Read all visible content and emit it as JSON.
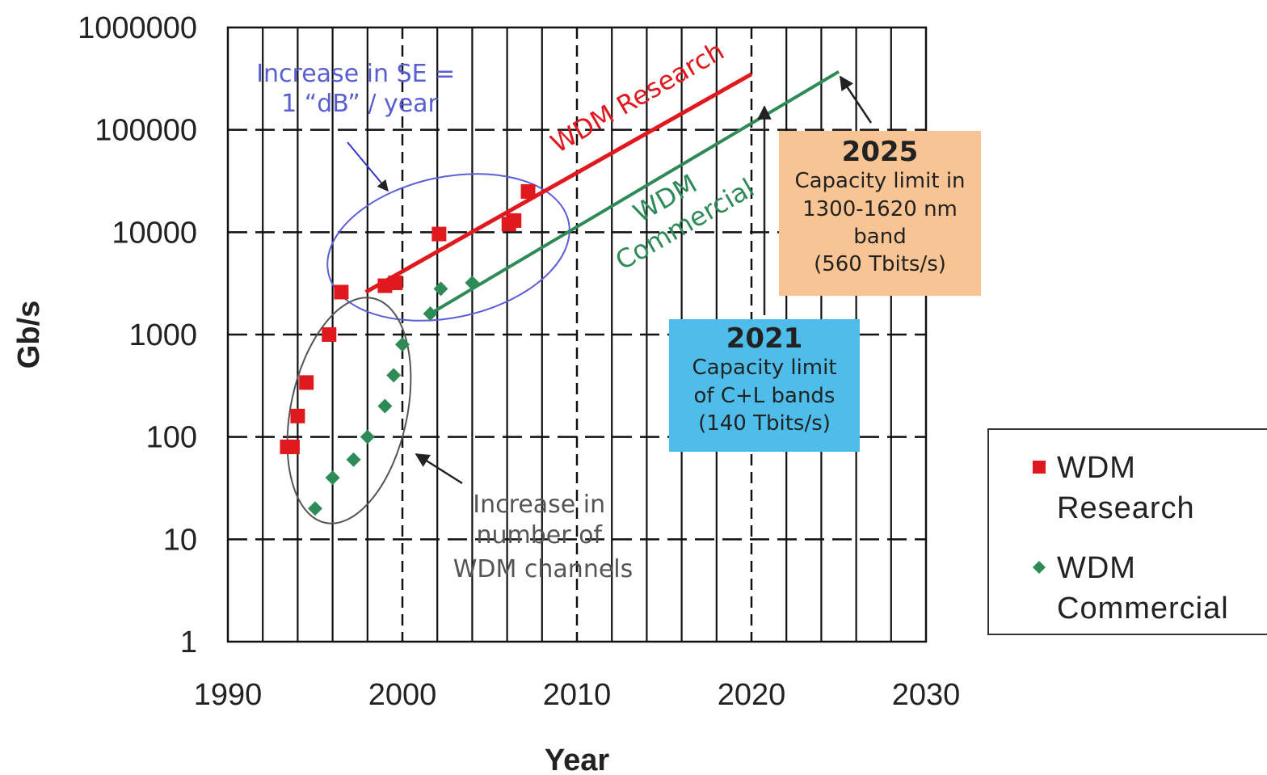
{
  "chart_data": {
    "type": "scatter",
    "xlabel": "Year",
    "ylabel": "Gb/s",
    "xlim": [
      1990,
      2030
    ],
    "ylim": [
      1,
      1000000
    ],
    "yscale": "log",
    "x_ticks": [
      "1990",
      "2000",
      "2010",
      "2020",
      "2030"
    ],
    "y_ticks": [
      "1",
      "10",
      "100",
      "1000",
      "10000",
      "100000",
      "1000000"
    ],
    "grid": "dashed major, solid vertical minor",
    "legend_position": "right",
    "series": [
      {
        "name": "WDM Research",
        "color": "#e0191f",
        "marker": "square",
        "points": [
          [
            1993.4,
            80
          ],
          [
            1993.7,
            80
          ],
          [
            1994.0,
            160
          ],
          [
            1994.5,
            340
          ],
          [
            1995.8,
            1000
          ],
          [
            1996.5,
            2600
          ],
          [
            1999.0,
            3000
          ],
          [
            1999.6,
            3200
          ],
          [
            2002.1,
            9600
          ],
          [
            2006.1,
            12000
          ],
          [
            2006.4,
            13000
          ],
          [
            2007.2,
            25000
          ]
        ],
        "trend": [
          [
            1997.9,
            2600
          ],
          [
            2020.0,
            350000
          ]
        ]
      },
      {
        "name": "WDM Commercial",
        "color": "#2e8b57",
        "marker": "diamond",
        "points": [
          [
            1995.0,
            20
          ],
          [
            1996.0,
            40
          ],
          [
            1997.2,
            60
          ],
          [
            1998.0,
            100
          ],
          [
            1999.0,
            200
          ],
          [
            1999.5,
            400
          ],
          [
            2000.0,
            800
          ],
          [
            2001.6,
            1600
          ],
          [
            2002.2,
            2800
          ],
          [
            2004.0,
            3200
          ]
        ],
        "trend": [
          [
            2001.6,
            1600
          ],
          [
            2025.0,
            370000
          ]
        ]
      }
    ],
    "annotations": {
      "se_note": [
        "Increase in SE =",
        "1 “dB” / year"
      ],
      "channels_note": [
        "Increase in",
        "number of",
        "WDM channels"
      ],
      "research_label": "WDM Research",
      "commercial_label": [
        "WDM",
        "Commercial"
      ],
      "box_2025": {
        "year": "2025",
        "lines": [
          "Capacity limit in",
          "1300-1620 nm",
          "band",
          "(560 Tbits/s)"
        ],
        "color": "#f9c493"
      },
      "box_2021": {
        "year": "2021",
        "lines": [
          "Capacity limit",
          "of C+L bands",
          "(140 Tbits/s)"
        ],
        "color": "#4fbde9"
      }
    },
    "legend": [
      {
        "lines": [
          "WDM",
          "Research"
        ]
      },
      {
        "lines": [
          "WDM",
          "Commercial"
        ]
      }
    ]
  }
}
